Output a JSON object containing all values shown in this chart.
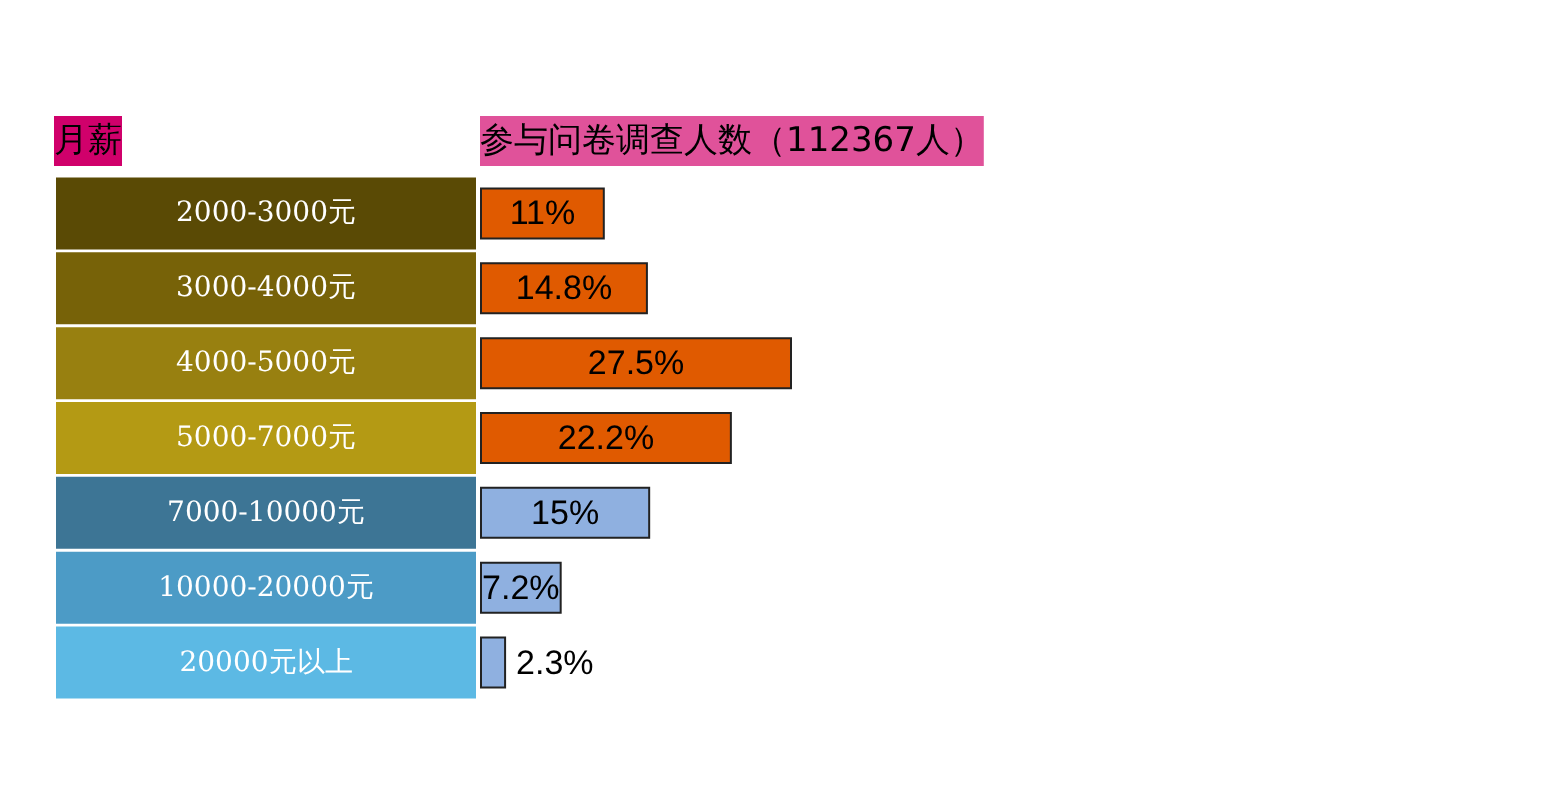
{
  "chart_data": {
    "type": "bar",
    "orientation": "horizontal",
    "title": "参与问卷调查人数（112367人）",
    "ylabel": "月薪",
    "categories": [
      "2000-3000元",
      "3000-4000元",
      "4000-5000元",
      "5000-7000元",
      "7000-10000元",
      "10000-20000元",
      "20000元以上"
    ],
    "values": [
      11,
      14.8,
      27.5,
      22.2,
      15,
      7.2,
      2.3
    ],
    "value_labels": [
      "11%",
      "14.8%",
      "27.5%",
      "22.2%",
      "15%",
      "7.2%",
      "2.3%"
    ],
    "colors": [
      "#e05a00",
      "#e05a00",
      "#e05a00",
      "#e05a00",
      "#8fb0e0",
      "#8fb0e0",
      "#8fb0e0"
    ]
  }
}
